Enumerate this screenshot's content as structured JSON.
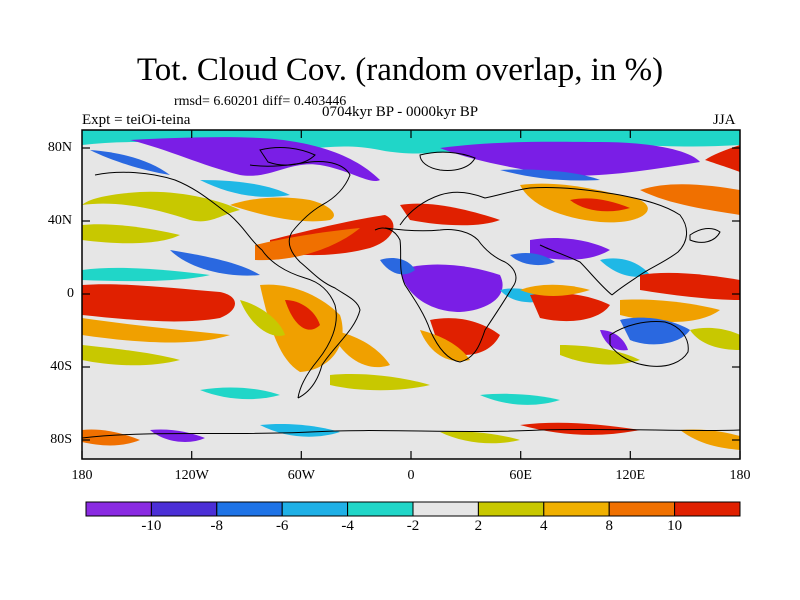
{
  "title": "Tot. Cloud Cov. (random overlap, in %)",
  "stats_line": "rmsd= 6.60201 diff= 0.403446",
  "expt_line": "Expt = teiOi-teina",
  "period_line": "0704kyr BP - 0000kyr BP",
  "season": "JJA",
  "lat_ticks": [
    "80N",
    "40N",
    "0",
    "40S",
    "80S"
  ],
  "lon_ticks": [
    "180",
    "120W",
    "60W",
    "0",
    "60E",
    "120E",
    "180"
  ],
  "colorbar": {
    "labels": [
      "-10",
      "-8",
      "-6",
      "-4",
      "-2",
      "2",
      "4",
      "8",
      "10"
    ],
    "colors": [
      "#8a2be2",
      "#4b2fd6",
      "#1e73e6",
      "#1fb0e6",
      "#20d6c8",
      "#e6e6e6",
      "#c8c800",
      "#f0b000",
      "#f07000",
      "#e02000"
    ]
  },
  "colors": {
    "purple": "#7a1ee6",
    "blue": "#2a68e0",
    "cyan": "#1fb8e6",
    "teal": "#20d6c8",
    "neutral": "#e6e6e6",
    "yellow": "#c8c800",
    "orange": "#f0a000",
    "darkorange": "#f07000",
    "red": "#e02000",
    "coast": "#000000"
  }
}
